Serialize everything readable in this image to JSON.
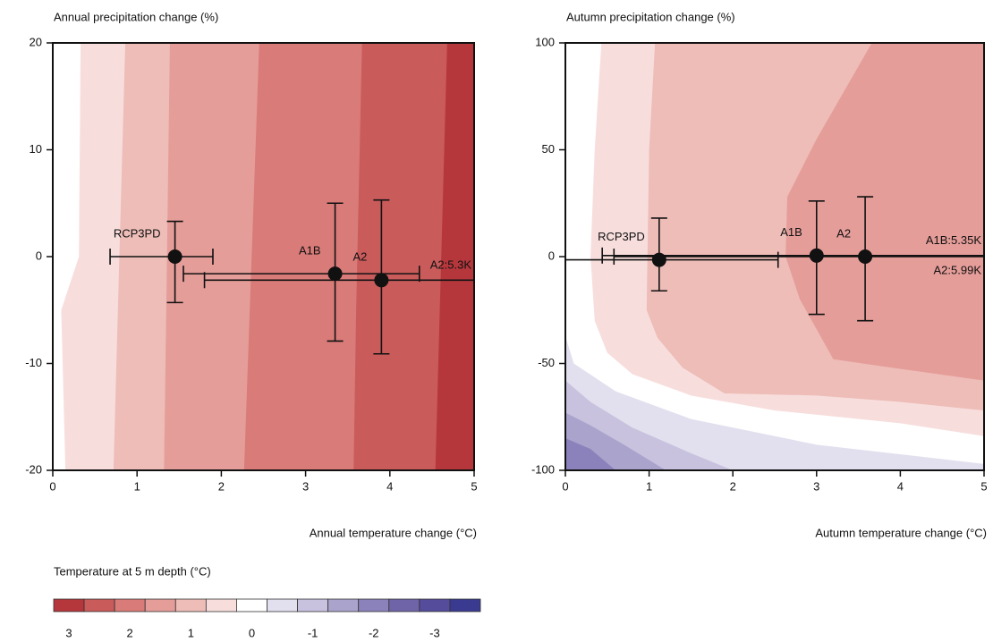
{
  "chart_data": [
    {
      "type": "contour",
      "title": "Annual precipitation change (%)",
      "x_label": "Annual temperature change (°C)",
      "xlim": [
        0,
        5
      ],
      "ylim": [
        -20,
        20
      ],
      "xticks": [
        0,
        1,
        2,
        3,
        4,
        5
      ],
      "yticks": [
        -20,
        -10,
        0,
        10,
        20
      ],
      "contours": [
        {
          "level": 0.5,
          "x": [
            0.33,
            0.31,
            0.1,
            0.15,
            5,
            5
          ],
          "y": [
            20,
            0,
            -5,
            -20,
            -20,
            20
          ]
        },
        {
          "level": 1,
          "x": [
            0.86,
            0.72,
            5,
            5
          ],
          "y": [
            20,
            -20,
            -20,
            20
          ]
        },
        {
          "level": 1.5,
          "x": [
            1.39,
            1.32,
            5,
            5
          ],
          "y": [
            20,
            -20,
            -20,
            20
          ]
        },
        {
          "level": 2,
          "x": [
            2.45,
            2.27,
            5,
            5
          ],
          "y": [
            20,
            -20,
            -20,
            20
          ]
        },
        {
          "level": 2.5,
          "x": [
            3.67,
            3.6,
            3.57,
            5,
            5
          ],
          "y": [
            20,
            -5,
            -20,
            -20,
            20
          ]
        },
        {
          "level": 3,
          "x": [
            4.68,
            4.54,
            5,
            5
          ],
          "y": [
            20,
            -20,
            -20,
            20
          ]
        }
      ],
      "points": [
        {
          "name": "RCP3PD",
          "x": 1.45,
          "y": 0,
          "xlow": 0.68,
          "xhigh": 1.9,
          "ylow": -4.3,
          "yhigh": 3.3
        },
        {
          "name": "A1B",
          "x": 3.35,
          "y": -1.6,
          "xlow": 1.55,
          "xhigh": 4.35,
          "ylow": -7.9,
          "yhigh": 5
        },
        {
          "name": "A2",
          "x": 3.9,
          "y": -2.2,
          "xlow": 1.8,
          "xhigh": 5.3,
          "ylow": -9.1,
          "yhigh": 5.3,
          "overflow_label": "A2:5.3K"
        }
      ]
    },
    {
      "type": "contour",
      "title": "Autumn precipitation change (%)",
      "x_label": "Autumn temperature change (°C)",
      "xlim": [
        0,
        5
      ],
      "ylim": [
        -100,
        100
      ],
      "xticks": [
        0,
        1,
        2,
        3,
        4,
        5
      ],
      "yticks": [
        -100,
        -50,
        0,
        50,
        100
      ],
      "contours": [
        {
          "level": 0.5,
          "x": [
            0.43,
            0.35,
            0.3,
            0.35,
            0.5,
            0.8,
            1.5,
            2.5,
            4,
            5,
            5
          ],
          "y": [
            100,
            50,
            0,
            -30,
            -45,
            -55,
            -65,
            -72,
            -78,
            -84,
            100
          ]
        },
        {
          "level": 1,
          "x": [
            1.07,
            1.0,
            0.98,
            0.97,
            1.1,
            1.4,
            1.9,
            3,
            4,
            5,
            5
          ],
          "y": [
            100,
            50,
            0,
            -25,
            -38,
            -52,
            -64,
            -65,
            -68,
            -72,
            100
          ]
        },
        {
          "level": 1.5,
          "x": [
            3.66,
            3.0,
            2.65,
            2.63,
            2.8,
            3.2,
            3.9,
            5,
            5
          ],
          "y": [
            100,
            55,
            28,
            0,
            -20,
            -48,
            -52,
            -58,
            100
          ]
        },
        {
          "level": -0.5,
          "x": [
            0,
            0.1,
            0.6,
            1.5,
            3,
            5,
            5,
            0
          ],
          "y": [
            -37,
            -50,
            -63,
            -76,
            -88,
            -97,
            -100,
            -100
          ]
        },
        {
          "level": -1,
          "x": [
            0,
            0.3,
            0.8,
            1.5,
            2,
            0
          ],
          "y": [
            -58,
            -68,
            -80,
            -92,
            -100,
            -100
          ]
        },
        {
          "level": -1.5,
          "x": [
            0,
            0.3,
            0.7,
            1.2,
            0
          ],
          "y": [
            -73,
            -79,
            -88,
            -100,
            -100
          ]
        },
        {
          "level": -2,
          "x": [
            0,
            0.3,
            0.6,
            0
          ],
          "y": [
            -85,
            -90,
            -100,
            -100
          ]
        }
      ],
      "points": [
        {
          "name": "RCP3PD",
          "x": 1.12,
          "y": -1.5,
          "xlow": 0,
          "xhigh": 2.54,
          "ylow": -16,
          "yhigh": 18
        },
        {
          "name": "A1B",
          "x": 3.0,
          "y": 0.5,
          "xlow": 0.44,
          "xhigh": 5.35,
          "ylow": -27,
          "yhigh": 26,
          "overflow_label": "A1B:5.35K"
        },
        {
          "name": "A2",
          "x": 3.58,
          "y": 0,
          "xlow": 0.58,
          "xhigh": 5.99,
          "ylow": -30,
          "yhigh": 28,
          "overflow_label": "A2:5.99K"
        }
      ]
    }
  ],
  "colorbar": {
    "title": "Temperature at 5 m depth (°C)",
    "levels": [
      3,
      2.5,
      2,
      1.5,
      1,
      0.5,
      0,
      -0.5,
      -1,
      -1.5,
      -2,
      -2.5,
      -3,
      -3.5
    ],
    "colors": [
      "#b5373c",
      "#c95b5b",
      "#d97b78",
      "#e59d99",
      "#eebdb8",
      "#f7dedd",
      "#ffffff",
      "#e2e0ee",
      "#c8c2de",
      "#aaa3cc",
      "#8c82bb",
      "#6f64a8",
      "#554c9b",
      "#3a3a90"
    ],
    "ticks": [
      3,
      2,
      1,
      0,
      -1,
      -2,
      -3
    ]
  }
}
